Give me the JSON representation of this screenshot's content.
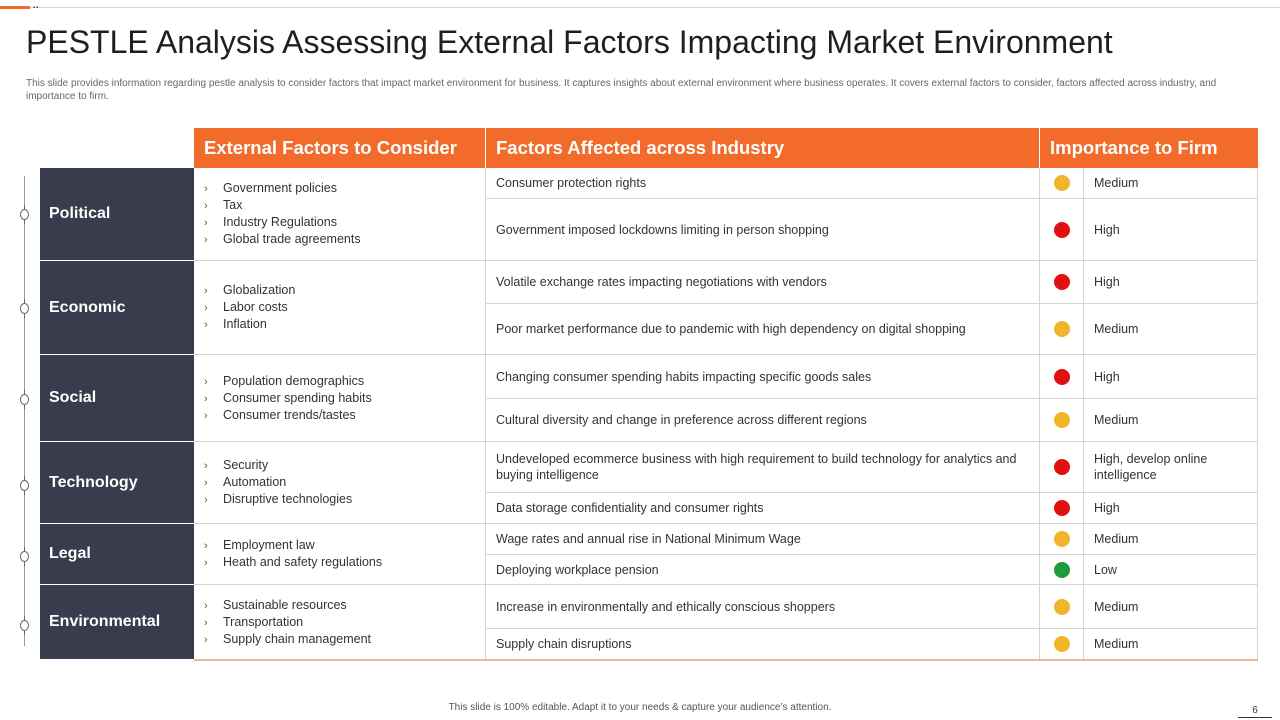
{
  "slide": {
    "title": "PESTLE Analysis Assessing External Factors Impacting Market Environment",
    "subtitle": "This slide provides information regarding pestle analysis to consider factors that impact market environment for business. It captures insights about external environment where business operates. It covers external factors to consider, factors affected across industry, and importance to firm.",
    "footer": "This slide is 100% editable.  Adapt it to your needs & capture your audience’s attention.",
    "page_number": "6"
  },
  "colors": {
    "accent": "#f26b2a",
    "category_bg": "#393c4c",
    "high": "#e01010",
    "medium": "#f0b62a",
    "low": "#1f9a3c"
  },
  "table": {
    "headers": {
      "external": "External Factors to Consider",
      "affected": "Factors Affected across Industry",
      "importance": "Importance to Firm"
    },
    "rows": [
      {
        "category": "Political",
        "factors": [
          "Government  policies",
          "Tax",
          "Industry Regulations",
          "Global trade agreements"
        ],
        "items": [
          {
            "affected": "Consumer  protection rights",
            "level": "medium",
            "importance": "Medium"
          },
          {
            "affected": "Government  imposed lockdowns limiting in person shopping",
            "level": "high",
            "importance": "High"
          }
        ]
      },
      {
        "category": "Economic",
        "factors": [
          "Globalization",
          "Labor costs",
          "Inflation"
        ],
        "items": [
          {
            "affected": "Volatile exchange rates impacting negotiations with vendors",
            "level": "high",
            "importance": "High"
          },
          {
            "affected": "Poor market performance  due to pandemic with high dependency on digital shopping",
            "level": "medium",
            "importance": "Medium"
          }
        ]
      },
      {
        "category": "Social",
        "factors": [
          "Population demographics",
          "Consumer spending habits",
          "Consumer trends/tastes"
        ],
        "items": [
          {
            "affected": "Changing consumer spending habits impacting specific goods sales",
            "level": "high",
            "importance": "High"
          },
          {
            "affected": "Cultural diversity  and change  in preference  across different  regions",
            "level": "medium",
            "importance": "Medium"
          }
        ]
      },
      {
        "category": "Technology",
        "factors": [
          "Security",
          "Automation",
          "Disruptive  technologies"
        ],
        "items": [
          {
            "affected": "Undeveloped  ecommerce business with high requirement  to build technology for analytics and buying intelligence",
            "level": "high",
            "importance": "High, develop  online intelligence"
          },
          {
            "affected": "Data storage confidentiality and consumer rights",
            "level": "high",
            "importance": "High"
          }
        ]
      },
      {
        "category": "Legal",
        "factors": [
          "Employment law",
          "Heath and safety regulations"
        ],
        "items": [
          {
            "affected": "Wage rates and annual rise in National Minimum Wage",
            "level": "medium",
            "importance": "Medium"
          },
          {
            "affected": "Deploying workplace pension",
            "level": "low",
            "importance": "Low"
          }
        ]
      },
      {
        "category": "Environmental",
        "factors": [
          "Sustainable resources",
          "Transportation",
          "Supply chain management"
        ],
        "items": [
          {
            "affected": "Increase in environmentally  and ethically conscious shoppers",
            "level": "medium",
            "importance": "Medium"
          },
          {
            "affected": "Supply chain disruptions",
            "level": "medium",
            "importance": "Medium"
          }
        ]
      }
    ]
  }
}
